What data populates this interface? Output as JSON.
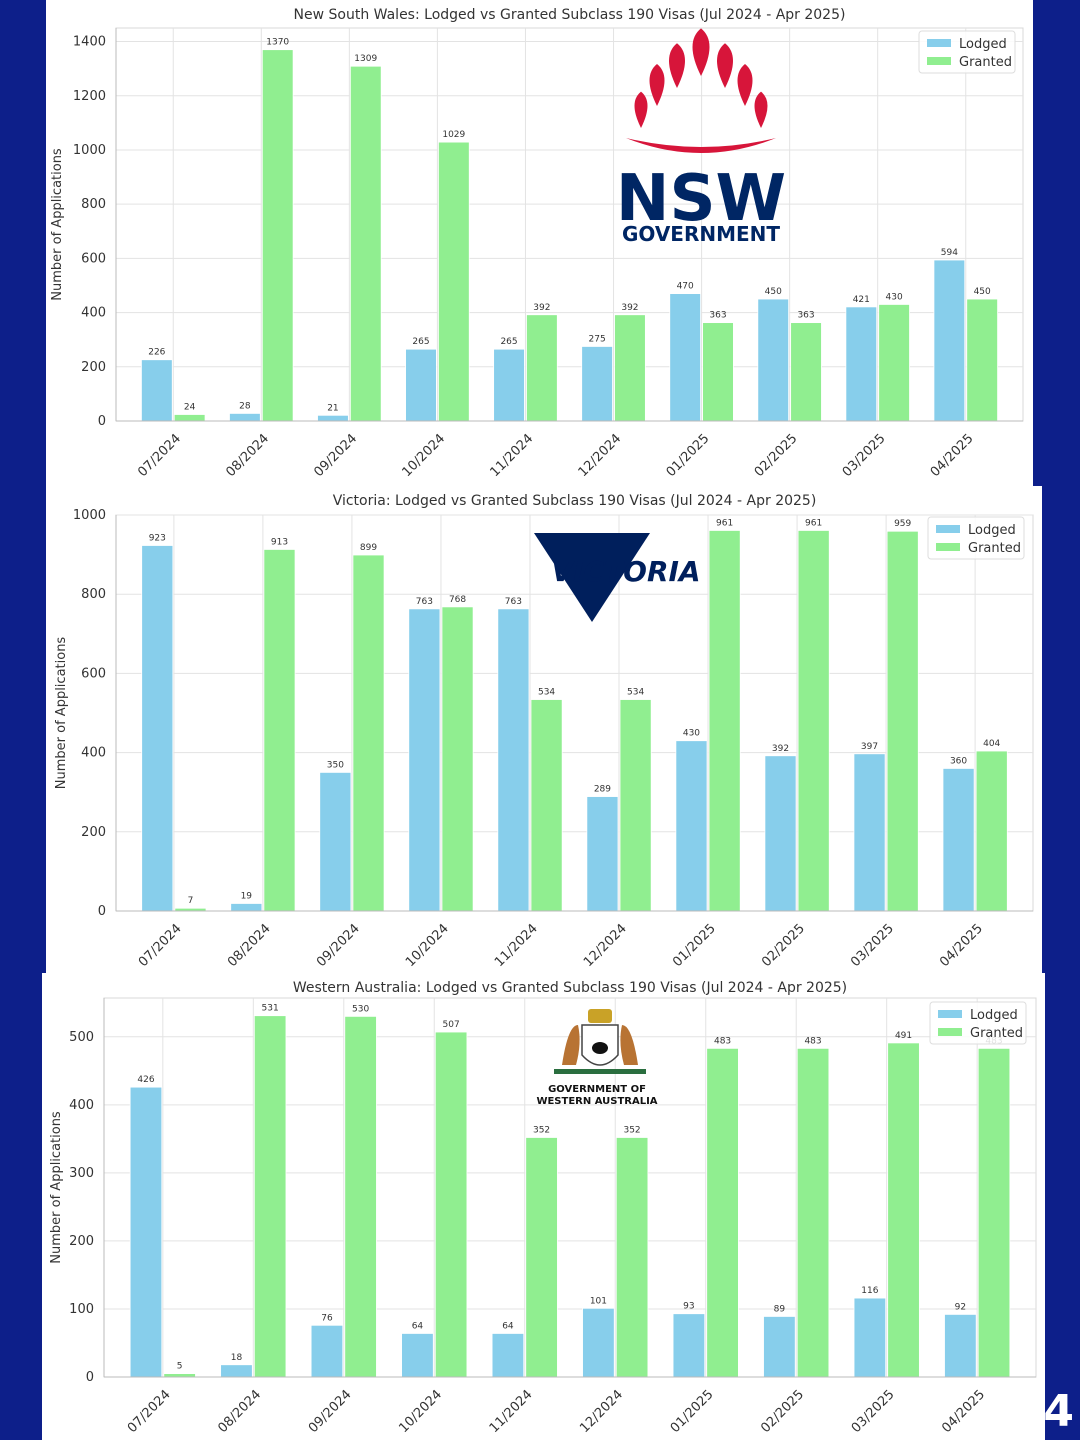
{
  "page": {
    "number": "4"
  },
  "colors": {
    "lodged": "#87ceeb",
    "granted": "#90ee90",
    "background": "#0d1f8a"
  },
  "logos": {
    "nsw": {
      "line1": "NSW",
      "line2": "GOVERNMENT",
      "icon": "waratah-flower-icon"
    },
    "vic": {
      "text": "VICTORIA",
      "icon": "victoria-triangle-icon"
    },
    "wa": {
      "line1": "GOVERNMENT OF",
      "line2": "WESTERN AUSTRALIA",
      "icon": "wa-coat-of-arms-icon"
    }
  },
  "chart_data": [
    {
      "type": "bar",
      "title": "New South Wales: Lodged vs Granted Subclass 190 Visas (Jul 2024 - Apr 2025)",
      "xlabel": "",
      "ylabel": "Number of Applications",
      "categories": [
        "07/2024",
        "08/2024",
        "09/2024",
        "10/2024",
        "11/2024",
        "12/2024",
        "01/2025",
        "02/2025",
        "03/2025",
        "04/2025"
      ],
      "series": [
        {
          "name": "Lodged",
          "values": [
            226,
            28,
            21,
            265,
            265,
            275,
            470,
            450,
            421,
            594
          ]
        },
        {
          "name": "Granted",
          "values": [
            24,
            1370,
            1309,
            1029,
            392,
            392,
            363,
            363,
            430,
            450
          ]
        }
      ],
      "ylim": [
        0,
        1450
      ],
      "yticks": [
        0,
        200,
        400,
        600,
        800,
        1000,
        1200,
        1400
      ],
      "grid": true,
      "legend": "top-right"
    },
    {
      "type": "bar",
      "title": "Victoria: Lodged vs Granted Subclass 190 Visas (Jul 2024 - Apr 2025)",
      "xlabel": "",
      "ylabel": "Number of Applications",
      "categories": [
        "07/2024",
        "08/2024",
        "09/2024",
        "10/2024",
        "11/2024",
        "12/2024",
        "01/2025",
        "02/2025",
        "03/2025",
        "04/2025"
      ],
      "series": [
        {
          "name": "Lodged",
          "values": [
            923,
            19,
            350,
            763,
            763,
            289,
            430,
            392,
            397,
            360
          ]
        },
        {
          "name": "Granted",
          "values": [
            7,
            913,
            899,
            768,
            534,
            534,
            961,
            961,
            959,
            404
          ]
        }
      ],
      "ylim": [
        0,
        1000
      ],
      "yticks": [
        0,
        200,
        400,
        600,
        800,
        1000
      ],
      "grid": true,
      "legend": "top-right"
    },
    {
      "type": "bar",
      "title": "Western Australia: Lodged vs Granted Subclass 190 Visas (Jul 2024 - Apr 2025)",
      "xlabel": "",
      "ylabel": "Number of Applications",
      "categories": [
        "07/2024",
        "08/2024",
        "09/2024",
        "10/2024",
        "11/2024",
        "12/2024",
        "01/2025",
        "02/2025",
        "03/2025",
        "04/2025"
      ],
      "series": [
        {
          "name": "Lodged",
          "values": [
            426,
            18,
            76,
            64,
            64,
            101,
            93,
            89,
            116,
            92
          ]
        },
        {
          "name": "Granted",
          "values": [
            5,
            531,
            530,
            507,
            352,
            352,
            483,
            483,
            491,
            483
          ]
        }
      ],
      "ylim": [
        0,
        557
      ],
      "yticks": [
        0,
        100,
        200,
        300,
        400,
        500
      ],
      "grid": true,
      "legend": "top-right"
    }
  ]
}
